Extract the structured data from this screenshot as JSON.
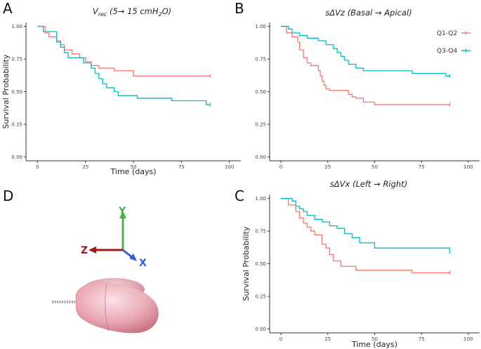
{
  "panels": {
    "A": "A",
    "B": "B",
    "C": "C",
    "D": "D"
  },
  "colors": {
    "q12": "#F8766D",
    "q34": "#00BFC4",
    "axis_y": "#4caf50",
    "axis_z": "#9b1c1c",
    "axis_x": "#3a5bd9"
  },
  "diagram": {
    "y_label": "Y",
    "z_label": "Z",
    "x_label": "X",
    "lung_icon": "lung-illustration"
  },
  "chart_data": [
    {
      "id": "A",
      "type": "line",
      "subtype": "kaplan-meier",
      "title_main": "V",
      "title_sub": "rec",
      "title_rest": " (5→ 15 cmH",
      "title_sub2": "2",
      "title_end": "O)",
      "xlabel": "Time (days)",
      "ylabel": "Survival Probability",
      "xlim": [
        -6,
        106
      ],
      "ylim": [
        -0.03,
        1.03
      ],
      "xticks": [
        0,
        25,
        50,
        75,
        100
      ],
      "yticks": [
        0.0,
        0.25,
        0.5,
        0.75,
        1.0
      ],
      "ytick_labels": [
        "0.00",
        "0.25",
        "0.50",
        "0.75",
        "1.00"
      ],
      "xtick_labels": [
        "0",
        "25",
        "50",
        "75",
        "100"
      ],
      "series": [
        {
          "name": "Q1-Q2",
          "color": "#F8766D",
          "x": [
            0,
            4,
            6,
            10,
            12,
            14,
            18,
            22,
            25,
            28,
            32,
            40,
            50,
            90
          ],
          "y": [
            1.0,
            0.95,
            0.92,
            0.89,
            0.86,
            0.82,
            0.79,
            0.76,
            0.73,
            0.7,
            0.68,
            0.66,
            0.62,
            0.62
          ]
        },
        {
          "name": "Q3-Q4",
          "color": "#00BFC4",
          "x": [
            0,
            3,
            10,
            12,
            14,
            16,
            24,
            28,
            30,
            32,
            34,
            36,
            40,
            42,
            46,
            52,
            70,
            88,
            90
          ],
          "y": [
            1.0,
            0.96,
            0.88,
            0.84,
            0.8,
            0.76,
            0.72,
            0.68,
            0.64,
            0.6,
            0.56,
            0.53,
            0.5,
            0.47,
            0.47,
            0.45,
            0.43,
            0.4,
            0.4
          ]
        }
      ]
    },
    {
      "id": "B",
      "type": "line",
      "subtype": "kaplan-meier",
      "title": "sΔVz (Basal → Apical)",
      "xlabel": "",
      "ylabel": "",
      "xlim": [
        -6,
        106
      ],
      "ylim": [
        -0.03,
        1.03
      ],
      "xticks": [
        0,
        25,
        50,
        75,
        100
      ],
      "yticks": [
        0.0,
        0.25,
        0.5,
        0.75,
        1.0
      ],
      "ytick_labels": [
        "0.00",
        "0.25",
        "0.50",
        "0.75",
        "1.00"
      ],
      "xtick_labels": [
        "0",
        "25",
        "50",
        "75",
        "100"
      ],
      "legend": {
        "position": "top-right",
        "entries": [
          "Q1-Q2",
          "Q3-Q4"
        ]
      },
      "series": [
        {
          "name": "Q1-Q2",
          "color": "#F8766D",
          "x": [
            0,
            3,
            6,
            9,
            10,
            12,
            14,
            16,
            20,
            21,
            22,
            23,
            24,
            26,
            36,
            38,
            40,
            44,
            50,
            90
          ],
          "y": [
            1.0,
            0.95,
            0.92,
            0.88,
            0.82,
            0.76,
            0.72,
            0.7,
            0.66,
            0.62,
            0.58,
            0.55,
            0.52,
            0.51,
            0.48,
            0.46,
            0.45,
            0.42,
            0.4,
            0.4
          ]
        },
        {
          "name": "Q3-Q4",
          "color": "#00BFC4",
          "x": [
            0,
            4,
            6,
            10,
            14,
            20,
            24,
            28,
            30,
            32,
            34,
            36,
            40,
            44,
            70,
            88,
            90
          ],
          "y": [
            1.0,
            0.98,
            0.95,
            0.93,
            0.91,
            0.89,
            0.86,
            0.83,
            0.8,
            0.77,
            0.74,
            0.71,
            0.68,
            0.66,
            0.64,
            0.62,
            0.62
          ]
        }
      ]
    },
    {
      "id": "C",
      "type": "line",
      "subtype": "kaplan-meier",
      "title": "sΔVx (Left → Right)",
      "xlabel": "Time (days)",
      "ylabel": "Survival Probability",
      "xlim": [
        -6,
        106
      ],
      "ylim": [
        -0.03,
        1.03
      ],
      "xticks": [
        0,
        25,
        50,
        75,
        100
      ],
      "yticks": [
        0.0,
        0.25,
        0.5,
        0.75,
        1.0
      ],
      "ytick_labels": [
        "0.00",
        "0.25",
        "0.50",
        "0.75",
        "1.00"
      ],
      "xtick_labels": [
        "0",
        "25",
        "50",
        "75",
        "100"
      ],
      "series": [
        {
          "name": "Q1-Q2",
          "color": "#F8766D",
          "x": [
            0,
            4,
            8,
            10,
            12,
            14,
            16,
            18,
            22,
            24,
            26,
            28,
            32,
            40,
            70,
            90
          ],
          "y": [
            1.0,
            0.95,
            0.9,
            0.85,
            0.81,
            0.78,
            0.75,
            0.72,
            0.65,
            0.62,
            0.57,
            0.52,
            0.48,
            0.45,
            0.43,
            0.43
          ]
        },
        {
          "name": "Q3-Q4",
          "color": "#00BFC4",
          "x": [
            0,
            6,
            8,
            10,
            12,
            14,
            18,
            22,
            26,
            30,
            34,
            38,
            42,
            50,
            90
          ],
          "y": [
            1.0,
            0.98,
            0.94,
            0.92,
            0.9,
            0.87,
            0.84,
            0.82,
            0.79,
            0.77,
            0.73,
            0.7,
            0.66,
            0.62,
            0.59
          ]
        }
      ]
    }
  ]
}
